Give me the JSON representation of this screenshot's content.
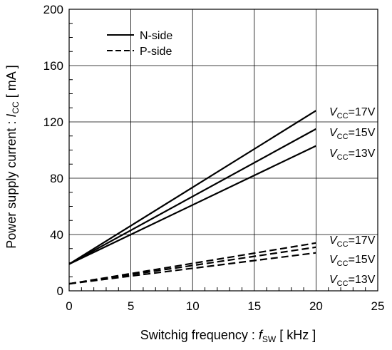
{
  "chart_data": {
    "type": "line",
    "xlabel": {
      "prefix": "Switchig frequency : ",
      "var": "f",
      "sub": "SW",
      "suffix": " [ kHz ]"
    },
    "ylabel": {
      "prefix": "Power supply current : ",
      "var": "I",
      "sub": "CC",
      "suffix": " [ mA ]"
    },
    "xlim": [
      0,
      25
    ],
    "ylim": [
      0,
      200
    ],
    "x_ticks": [
      0,
      5,
      10,
      15,
      20,
      25
    ],
    "y_ticks": [
      0,
      40,
      80,
      120,
      160,
      200
    ],
    "grid": true,
    "legend_position": "top-left",
    "legend": [
      {
        "label": "N-side",
        "style": "solid"
      },
      {
        "label": "P-side",
        "style": "dashed"
      }
    ],
    "series": [
      {
        "group": "N-side",
        "style": "solid",
        "label": "VCC=17V",
        "x": [
          0,
          20
        ],
        "y": [
          19,
          128
        ]
      },
      {
        "group": "N-side",
        "style": "solid",
        "label": "VCC=15V",
        "x": [
          0,
          20
        ],
        "y": [
          19,
          115
        ]
      },
      {
        "group": "N-side",
        "style": "solid",
        "label": "VCC=13V",
        "x": [
          0,
          20
        ],
        "y": [
          19,
          103
        ]
      },
      {
        "group": "P-side",
        "style": "dashed",
        "label": "VCC=17V",
        "x": [
          0,
          20
        ],
        "y": [
          5,
          34
        ]
      },
      {
        "group": "P-side",
        "style": "dashed",
        "label": "VCC=15V",
        "x": [
          0,
          20
        ],
        "y": [
          5,
          31
        ]
      },
      {
        "group": "P-side",
        "style": "dashed",
        "label": "VCC=13V",
        "x": [
          0,
          20
        ],
        "y": [
          5,
          27
        ]
      }
    ],
    "annotations": [
      {
        "sym": "V",
        "sub": "CC",
        "val": "=17V"
      },
      {
        "sym": "V",
        "sub": "CC",
        "val": "=15V"
      },
      {
        "sym": "V",
        "sub": "CC",
        "val": "=13V"
      },
      {
        "sym": "V",
        "sub": "CC",
        "val": "=17V"
      },
      {
        "sym": "V",
        "sub": "CC",
        "val": "=15V"
      },
      {
        "sym": "V",
        "sub": "CC",
        "val": "=13V"
      }
    ]
  }
}
